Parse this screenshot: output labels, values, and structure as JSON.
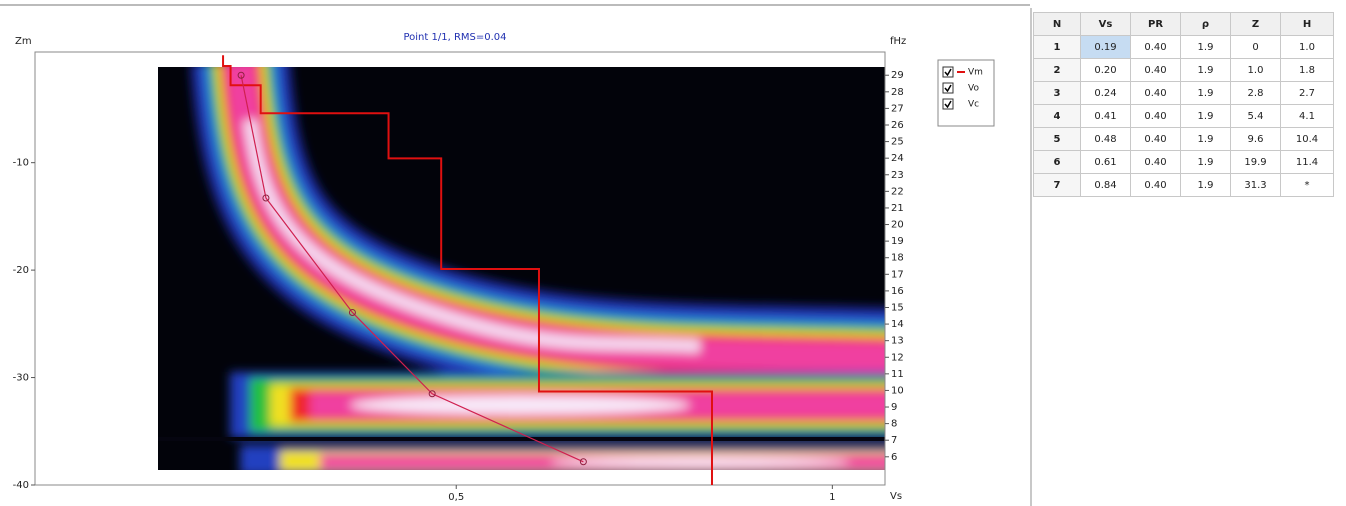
{
  "chart_data": {
    "type": "line",
    "title": "Point 1/1, RMS=0.04",
    "y_label": "Zm",
    "y2_label": "fHz",
    "x_label": "Vs",
    "xlim": [
      -0.06,
      1.07
    ],
    "xticks": [
      {
        "value": 0.5,
        "label": "0,5"
      },
      1
    ],
    "ylim": [
      -40,
      0.3
    ],
    "yticks": [
      -10,
      -20,
      -30,
      -40
    ],
    "y2lim": [
      4.3,
      30.4
    ],
    "y2ticks": [
      6,
      7,
      8,
      9,
      10,
      11,
      12,
      13,
      14,
      15,
      16,
      17,
      18,
      19,
      20,
      21,
      22,
      23,
      24,
      25,
      26,
      27,
      28,
      29
    ],
    "series": [
      {
        "name": "Vm",
        "color": "#e01010",
        "x": [
          0.19,
          0.19,
          0.2,
          0.2,
          0.24,
          0.24,
          0.41,
          0.41,
          0.48,
          0.48,
          0.61,
          0.61,
          0.84,
          0.84
        ],
        "values": [
          0,
          -1.0,
          -1.0,
          -2.8,
          -2.8,
          -5.4,
          -5.4,
          -9.6,
          -9.6,
          -19.9,
          -19.9,
          -31.3,
          -31.3,
          -40
        ]
      },
      {
        "name": "Vo",
        "color": "#d02050",
        "axis": "y2",
        "x": [
          0.214,
          0.247,
          0.362,
          0.468,
          0.669
        ],
        "values": [
          29,
          21.6,
          14.7,
          9.8,
          5.7
        ]
      },
      {
        "name": "Vc",
        "color": "#2030a0",
        "x": [],
        "values": []
      }
    ]
  },
  "table": {
    "columns": [
      "N",
      "Vs",
      "PR",
      "ρ",
      "Z",
      "H"
    ],
    "rows": [
      [
        "1",
        "0.19",
        "0.40",
        "1.9",
        "0",
        "1.0"
      ],
      [
        "2",
        "0.20",
        "0.40",
        "1.9",
        "1.0",
        "1.8"
      ],
      [
        "3",
        "0.24",
        "0.40",
        "1.9",
        "2.8",
        "2.7"
      ],
      [
        "4",
        "0.41",
        "0.40",
        "1.9",
        "5.4",
        "4.1"
      ],
      [
        "5",
        "0.48",
        "0.40",
        "1.9",
        "9.6",
        "10.4"
      ],
      [
        "6",
        "0.61",
        "0.40",
        "1.9",
        "19.9",
        "11.4"
      ],
      [
        "7",
        "0.84",
        "0.40",
        "1.9",
        "31.3",
        "*"
      ]
    ]
  }
}
